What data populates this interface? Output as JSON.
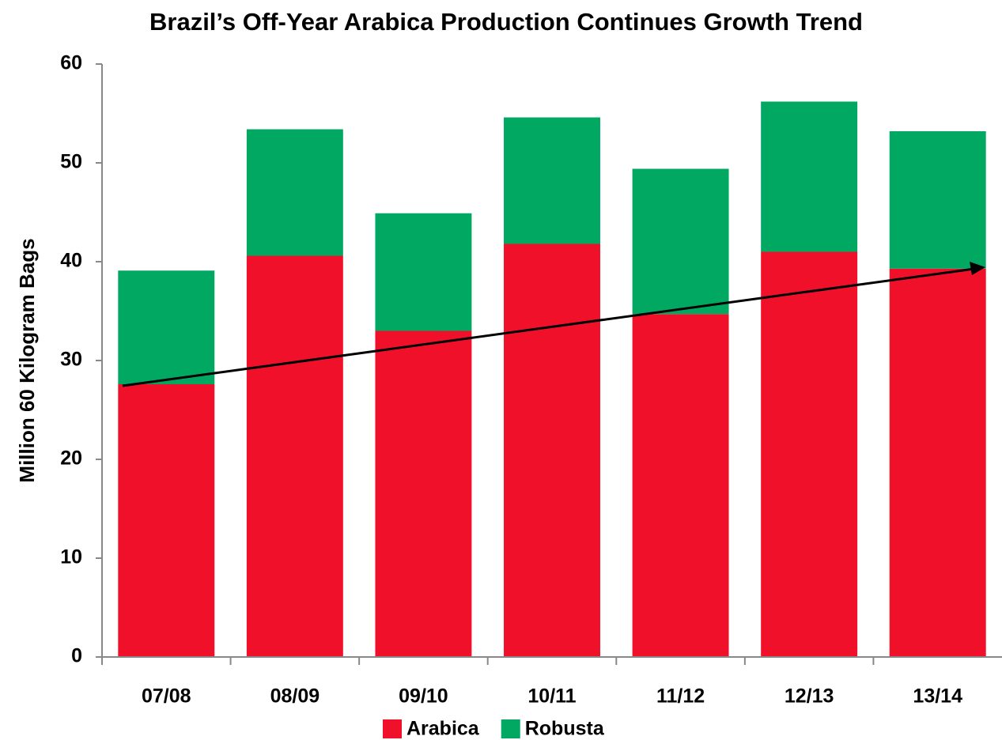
{
  "chart_data": {
    "type": "stacked-bar",
    "title": "Brazil’s Off-Year Arabica Production Continues Growth Trend",
    "y_label": "Million 60 Kilogram Bags",
    "categories": [
      "07/08",
      "08/09",
      "09/10",
      "10/11",
      "11/12",
      "12/13",
      "13/14"
    ],
    "series": [
      {
        "name": "Arabica",
        "color": "#f0102a",
        "values": [
          27.6,
          40.6,
          33.0,
          41.8,
          34.7,
          41.0,
          39.3
        ]
      },
      {
        "name": "Robusta",
        "color": "#00a862",
        "values": [
          11.5,
          12.8,
          11.9,
          12.8,
          14.7,
          15.2,
          13.9
        ]
      }
    ],
    "ylim": [
      0,
      60
    ],
    "yticks": [
      0,
      10,
      20,
      30,
      40,
      50,
      60
    ],
    "legend": "bottom"
  }
}
